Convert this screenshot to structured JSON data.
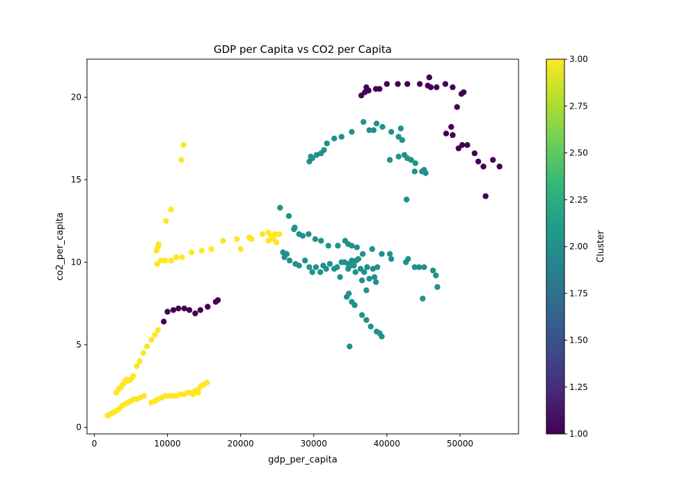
{
  "chart_data": {
    "type": "scatter",
    "title": "GDP per Capita vs CO2 per Capita",
    "xlabel": "gdp_per_capita",
    "ylabel": "co2_per_capita",
    "xlim": [
      -1000,
      58000
    ],
    "ylim": [
      -0.4,
      22.3
    ],
    "xticks": [
      0,
      10000,
      20000,
      30000,
      40000,
      50000
    ],
    "yticks": [
      0,
      5,
      10,
      15,
      20
    ],
    "grid": false,
    "colorbar": {
      "label": "Cluster",
      "range": [
        1.0,
        3.0
      ],
      "ticks": [
        "1.00",
        "1.25",
        "1.50",
        "1.75",
        "2.00",
        "2.25",
        "2.50",
        "2.75",
        "3.00"
      ],
      "colormap": "viridis"
    },
    "series": [
      {
        "cluster": 1,
        "color": "#440154",
        "points": [
          [
            36500,
            20.1
          ],
          [
            37000,
            20.3
          ],
          [
            37500,
            20.4
          ],
          [
            37200,
            20.6
          ],
          [
            38500,
            20.5
          ],
          [
            39000,
            20.5
          ],
          [
            40000,
            20.8
          ],
          [
            41500,
            20.8
          ],
          [
            42800,
            20.8
          ],
          [
            44500,
            20.8
          ],
          [
            45600,
            20.7
          ],
          [
            46000,
            20.6
          ],
          [
            46800,
            20.6
          ],
          [
            45800,
            21.2
          ],
          [
            48000,
            20.8
          ],
          [
            49000,
            20.6
          ],
          [
            50200,
            20.2
          ],
          [
            50500,
            20.3
          ],
          [
            49600,
            19.4
          ],
          [
            48100,
            17.8
          ],
          [
            49000,
            17.7
          ],
          [
            48800,
            18.2
          ],
          [
            49800,
            16.9
          ],
          [
            50300,
            17.1
          ],
          [
            51000,
            17.1
          ],
          [
            52000,
            16.6
          ],
          [
            52500,
            16.1
          ],
          [
            53200,
            15.8
          ],
          [
            54500,
            16.2
          ],
          [
            55400,
            15.8
          ],
          [
            53500,
            14.0
          ],
          [
            9500,
            6.4
          ],
          [
            10000,
            7.0
          ],
          [
            10800,
            7.1
          ],
          [
            11500,
            7.2
          ],
          [
            12300,
            7.2
          ],
          [
            13000,
            7.1
          ],
          [
            13800,
            6.9
          ],
          [
            14500,
            7.1
          ],
          [
            15500,
            7.3
          ],
          [
            16600,
            7.6
          ],
          [
            16900,
            7.7
          ]
        ]
      },
      {
        "cluster": 2,
        "color": "#21918c",
        "points": [
          [
            29400,
            16.1
          ],
          [
            29800,
            16.3
          ],
          [
            29600,
            16.4
          ],
          [
            30400,
            16.5
          ],
          [
            31000,
            16.6
          ],
          [
            31400,
            16.8
          ],
          [
            31800,
            17.2
          ],
          [
            32800,
            17.5
          ],
          [
            33800,
            17.6
          ],
          [
            35200,
            17.9
          ],
          [
            36800,
            18.5
          ],
          [
            37600,
            18.0
          ],
          [
            38200,
            18.0
          ],
          [
            38600,
            18.4
          ],
          [
            39400,
            18.2
          ],
          [
            40600,
            17.9
          ],
          [
            41600,
            17.6
          ],
          [
            41900,
            18.1
          ],
          [
            42100,
            17.4
          ],
          [
            40400,
            16.2
          ],
          [
            41600,
            16.4
          ],
          [
            42400,
            16.5
          ],
          [
            42800,
            16.3
          ],
          [
            43300,
            16.2
          ],
          [
            43900,
            16.0
          ],
          [
            43800,
            15.5
          ],
          [
            44800,
            15.5
          ],
          [
            45100,
            15.6
          ],
          [
            45300,
            15.4
          ],
          [
            42700,
            13.8
          ],
          [
            25400,
            13.3
          ],
          [
            26600,
            12.8
          ],
          [
            27300,
            12.0
          ],
          [
            27400,
            12.1
          ],
          [
            28000,
            11.7
          ],
          [
            28500,
            11.6
          ],
          [
            29300,
            11.7
          ],
          [
            30200,
            11.4
          ],
          [
            31000,
            11.3
          ],
          [
            32000,
            11.0
          ],
          [
            33300,
            11.0
          ],
          [
            34300,
            11.3
          ],
          [
            34700,
            11.1
          ],
          [
            35200,
            11.0
          ],
          [
            35900,
            10.9
          ],
          [
            36700,
            10.5
          ],
          [
            38000,
            10.8
          ],
          [
            39300,
            10.5
          ],
          [
            40400,
            10.5
          ],
          [
            40600,
            10.2
          ],
          [
            42600,
            10.0
          ],
          [
            42900,
            10.2
          ],
          [
            43800,
            9.7
          ],
          [
            44400,
            9.7
          ],
          [
            45100,
            9.7
          ],
          [
            46300,
            9.5
          ],
          [
            46700,
            9.2
          ],
          [
            46900,
            8.5
          ],
          [
            25800,
            10.6
          ],
          [
            26000,
            10.3
          ],
          [
            26300,
            10.5
          ],
          [
            26700,
            10.1
          ],
          [
            27500,
            9.9
          ],
          [
            28000,
            9.8
          ],
          [
            28800,
            10.1
          ],
          [
            29400,
            9.7
          ],
          [
            29800,
            9.4
          ],
          [
            30300,
            9.7
          ],
          [
            30900,
            9.4
          ],
          [
            31300,
            9.8
          ],
          [
            31700,
            9.6
          ],
          [
            32200,
            9.9
          ],
          [
            32800,
            9.6
          ],
          [
            33200,
            9.7
          ],
          [
            33800,
            10.0
          ],
          [
            34200,
            10.0
          ],
          [
            34700,
            9.9
          ],
          [
            35200,
            10.1
          ],
          [
            35800,
            10.1
          ],
          [
            36100,
            10.2
          ],
          [
            35100,
            9.8
          ],
          [
            35500,
            9.8
          ],
          [
            36400,
            9.6
          ],
          [
            37300,
            9.7
          ],
          [
            38100,
            9.6
          ],
          [
            38700,
            9.7
          ],
          [
            33600,
            9.1
          ],
          [
            34700,
            9.6
          ],
          [
            35700,
            9.4
          ],
          [
            36900,
            9.4
          ],
          [
            37600,
            9.0
          ],
          [
            38300,
            9.1
          ],
          [
            38500,
            8.8
          ],
          [
            36600,
            8.9
          ],
          [
            37200,
            8.3
          ],
          [
            44900,
            7.8
          ],
          [
            34500,
            7.9
          ],
          [
            34800,
            8.1
          ],
          [
            35200,
            7.6
          ],
          [
            35600,
            7.4
          ],
          [
            36600,
            6.8
          ],
          [
            37200,
            6.5
          ],
          [
            37800,
            6.1
          ],
          [
            38600,
            5.8
          ],
          [
            39000,
            5.7
          ],
          [
            39300,
            5.5
          ],
          [
            34900,
            4.9
          ]
        ]
      },
      {
        "cluster": 3,
        "color": "#fde725",
        "points": [
          [
            12200,
            17.1
          ],
          [
            11900,
            16.2
          ],
          [
            10500,
            13.2
          ],
          [
            9800,
            12.5
          ],
          [
            8500,
            10.7
          ],
          [
            8700,
            10.9
          ],
          [
            8800,
            11.1
          ],
          [
            8600,
            9.9
          ],
          [
            9100,
            10.1
          ],
          [
            9700,
            10.1
          ],
          [
            10500,
            10.1
          ],
          [
            11200,
            10.3
          ],
          [
            12000,
            10.3
          ],
          [
            13300,
            10.6
          ],
          [
            14700,
            10.7
          ],
          [
            16000,
            10.8
          ],
          [
            17600,
            11.3
          ],
          [
            19500,
            11.4
          ],
          [
            20000,
            10.8
          ],
          [
            21200,
            11.5
          ],
          [
            21500,
            11.4
          ],
          [
            23000,
            11.7
          ],
          [
            23800,
            11.8
          ],
          [
            24200,
            11.6
          ],
          [
            24700,
            11.7
          ],
          [
            25300,
            11.7
          ],
          [
            23800,
            11.3
          ],
          [
            24500,
            11.4
          ],
          [
            24900,
            11.2
          ],
          [
            3000,
            2.1
          ],
          [
            3300,
            2.3
          ],
          [
            3600,
            2.4
          ],
          [
            3900,
            2.6
          ],
          [
            4200,
            2.8
          ],
          [
            4600,
            2.8
          ],
          [
            5000,
            2.9
          ],
          [
            5300,
            3.1
          ],
          [
            4400,
            2.9
          ],
          [
            5800,
            3.7
          ],
          [
            6200,
            4.0
          ],
          [
            6700,
            4.5
          ],
          [
            7200,
            4.9
          ],
          [
            7800,
            5.3
          ],
          [
            8300,
            5.6
          ],
          [
            8700,
            5.9
          ],
          [
            1800,
            0.7
          ],
          [
            2200,
            0.8
          ],
          [
            2600,
            0.9
          ],
          [
            3000,
            1.0
          ],
          [
            3400,
            1.1
          ],
          [
            3800,
            1.3
          ],
          [
            4200,
            1.4
          ],
          [
            4600,
            1.5
          ],
          [
            5000,
            1.6
          ],
          [
            5400,
            1.7
          ],
          [
            5800,
            1.7
          ],
          [
            6300,
            1.8
          ],
          [
            6800,
            1.9
          ],
          [
            7800,
            1.5
          ],
          [
            8300,
            1.6
          ],
          [
            8700,
            1.7
          ],
          [
            9200,
            1.8
          ],
          [
            9700,
            1.9
          ],
          [
            10200,
            1.9
          ],
          [
            10700,
            1.9
          ],
          [
            11200,
            1.9
          ],
          [
            11700,
            2.0
          ],
          [
            12300,
            2.0
          ],
          [
            12800,
            2.1
          ],
          [
            13300,
            2.1
          ],
          [
            13800,
            2.2
          ],
          [
            14200,
            2.3
          ],
          [
            14600,
            2.5
          ],
          [
            15000,
            2.6
          ],
          [
            15400,
            2.7
          ],
          [
            13500,
            2.0
          ],
          [
            14200,
            2.1
          ]
        ]
      }
    ]
  }
}
